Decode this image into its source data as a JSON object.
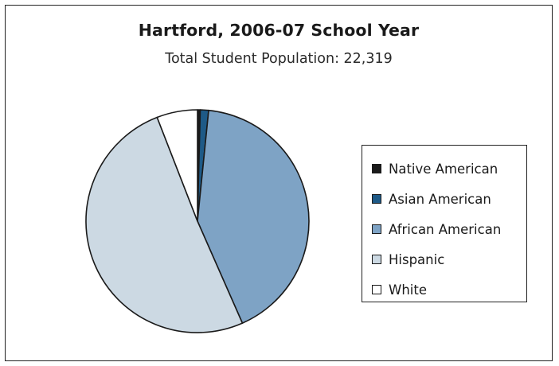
{
  "chart_data": {
    "type": "pie",
    "title": "Hartford, 2006-07 School Year",
    "subtitle": "Total Student Population: 22,319",
    "legend_position": "right",
    "slices": [
      {
        "label": "Native American",
        "value": 0.4,
        "color": "#1b1b1b"
      },
      {
        "label": "Asian American",
        "value": 1.2,
        "color": "#1e5a87"
      },
      {
        "label": "African American",
        "value": 41.8,
        "color": "#7ea3c5"
      },
      {
        "label": "Hispanic",
        "value": 50.7,
        "color": "#ccd9e3"
      },
      {
        "label": "White",
        "value": 5.9,
        "color": "#ffffff"
      }
    ]
  }
}
